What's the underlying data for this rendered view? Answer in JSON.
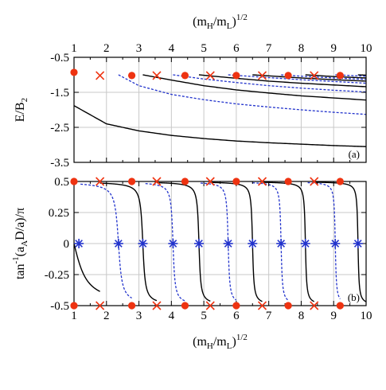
{
  "chart_data": [
    {
      "type": "line",
      "panel_label": "(a)",
      "top_xlabel": "(m_H/m_L)^{1/2}",
      "ylabel": "E/B_2",
      "xlim": [
        1,
        10
      ],
      "ylim": [
        -3.5,
        -0.5
      ],
      "xticks": [
        1,
        2,
        3,
        4,
        5,
        6,
        7,
        8,
        9,
        10
      ],
      "yticks": [
        -0.5,
        -1.5,
        -2.5,
        -3.5
      ],
      "ytick_labels": [
        "-0.5",
        "-1.5",
        "-2.5",
        "-3.5"
      ],
      "grid": true,
      "series": [
        {
          "style": "solid",
          "color": "#000000",
          "x": [
            1,
            2,
            3,
            4,
            5,
            6,
            7,
            8,
            9,
            10
          ],
          "values": [
            -1.88,
            -2.4,
            -2.6,
            -2.73,
            -2.82,
            -2.89,
            -2.94,
            -2.98,
            -3.02,
            -3.05
          ]
        },
        {
          "style": "dashed",
          "color": "#2233cc",
          "x": [
            2.37,
            3,
            4,
            5,
            6,
            7,
            8,
            9,
            10
          ],
          "values": [
            -1.0,
            -1.31,
            -1.56,
            -1.71,
            -1.83,
            -1.92,
            -2.0,
            -2.07,
            -2.13
          ]
        },
        {
          "style": "solid",
          "color": "#000000",
          "x": [
            3.12,
            4,
            5,
            6,
            7,
            8,
            9,
            10
          ],
          "values": [
            -1.0,
            -1.15,
            -1.31,
            -1.43,
            -1.52,
            -1.6,
            -1.66,
            -1.72
          ]
        },
        {
          "style": "dashed",
          "color": "#2233cc",
          "x": [
            4.05,
            5,
            6,
            7,
            8,
            9,
            10
          ],
          "values": [
            -1.0,
            -1.12,
            -1.22,
            -1.31,
            -1.38,
            -1.44,
            -1.49
          ]
        },
        {
          "style": "solid",
          "color": "#000000",
          "x": [
            4.85,
            6,
            7,
            8,
            9,
            10
          ],
          "values": [
            -1.0,
            -1.1,
            -1.18,
            -1.24,
            -1.29,
            -1.34
          ]
        },
        {
          "style": "dashed",
          "color": "#2233cc",
          "x": [
            5.75,
            7,
            8,
            9,
            10
          ],
          "values": [
            -1.0,
            -1.08,
            -1.14,
            -1.19,
            -1.24
          ]
        },
        {
          "style": "solid",
          "color": "#000000",
          "x": [
            6.5,
            7,
            8,
            9,
            10
          ],
          "values": [
            -1.0,
            -1.03,
            -1.09,
            -1.14,
            -1.18
          ]
        },
        {
          "style": "dashed",
          "color": "#2233cc",
          "x": [
            7.38,
            8,
            9,
            10
          ],
          "values": [
            -1.0,
            -1.04,
            -1.09,
            -1.13
          ]
        },
        {
          "style": "solid",
          "color": "#000000",
          "x": [
            8.13,
            9,
            10
          ],
          "values": [
            -1.0,
            -1.05,
            -1.09
          ]
        },
        {
          "style": "dashed",
          "color": "#2233cc",
          "x": [
            9.05,
            10
          ],
          "values": [
            -1.0,
            -1.04
          ]
        },
        {
          "style": "solid",
          "color": "#000000",
          "x": [
            9.75,
            10
          ],
          "values": [
            -1.0,
            -1.01
          ]
        }
      ],
      "markers": [
        {
          "symbol": "filled-circle",
          "color": "#ee3311",
          "x": [
            1.0,
            2.78,
            4.42,
            6.0,
            7.6,
            9.2
          ],
          "values": [
            -0.93,
            -1.02,
            -1.02,
            -1.02,
            -1.02,
            -1.02
          ]
        },
        {
          "symbol": "cross",
          "color": "#ee3311",
          "x": [
            1.8,
            3.55,
            5.2,
            6.8,
            8.4
          ],
          "values": [
            -1.02,
            -1.02,
            -1.02,
            -1.02,
            -1.02
          ]
        }
      ]
    },
    {
      "type": "line",
      "panel_label": "(b)",
      "xlabel": "(m_H/m_L)^{1/2}",
      "ylabel": "tan^{-1}(a_AD/a)/π",
      "xlim": [
        1,
        10
      ],
      "ylim": [
        -0.5,
        0.5
      ],
      "xticks": [
        1,
        2,
        3,
        4,
        5,
        6,
        7,
        8,
        9,
        10
      ],
      "yticks": [
        0.5,
        0.25,
        0,
        -0.25,
        -0.5
      ],
      "ytick_labels": [
        "0.5",
        "0.25",
        "0",
        "-0.25",
        "-0.5"
      ],
      "grid": true,
      "series": [
        {
          "style": "solid",
          "color": "#000000",
          "kind": "arctan",
          "x0": 1.0,
          "branch": "lower",
          "width": 0.3,
          "x_end": 1.8
        },
        {
          "style": "dashed",
          "color": "#2233cc",
          "kind": "arctan",
          "x0": 2.37,
          "width": 0.08,
          "x_start": 1.2,
          "x_end": 2.78
        },
        {
          "style": "solid",
          "color": "#000000",
          "kind": "arctan",
          "x0": 3.12,
          "width": 0.055,
          "x_start": 1.8,
          "x_end": 3.55
        },
        {
          "style": "dashed",
          "color": "#2233cc",
          "kind": "arctan",
          "x0": 4.05,
          "width": 0.045,
          "x_start": 3.2,
          "x_end": 4.42
        },
        {
          "style": "solid",
          "color": "#000000",
          "kind": "arctan",
          "x0": 4.85,
          "width": 0.04,
          "x_start": 3.55,
          "x_end": 5.2
        },
        {
          "style": "dashed",
          "color": "#2233cc",
          "kind": "arctan",
          "x0": 5.75,
          "width": 0.035,
          "x_start": 4.9,
          "x_end": 6.0
        },
        {
          "style": "solid",
          "color": "#000000",
          "kind": "arctan",
          "x0": 6.5,
          "width": 0.032,
          "x_start": 5.2,
          "x_end": 6.8
        },
        {
          "style": "dashed",
          "color": "#2233cc",
          "kind": "arctan",
          "x0": 7.38,
          "width": 0.03,
          "x_start": 6.5,
          "x_end": 7.6
        },
        {
          "style": "solid",
          "color": "#000000",
          "kind": "arctan",
          "x0": 8.13,
          "width": 0.028,
          "x_start": 6.8,
          "x_end": 8.4
        },
        {
          "style": "dashed",
          "color": "#2233cc",
          "kind": "arctan",
          "x0": 9.05,
          "width": 0.026,
          "x_start": 8.2,
          "x_end": 9.2
        },
        {
          "style": "solid",
          "color": "#000000",
          "kind": "arctan",
          "x0": 9.75,
          "width": 0.025,
          "x_start": 8.4,
          "x_end": 10.0
        }
      ],
      "markers": [
        {
          "symbol": "filled-circle",
          "color": "#ee3311",
          "x": [
            1.0,
            2.78,
            4.42,
            6.0,
            7.6,
            9.2
          ],
          "values": [
            0.5,
            0.5,
            0.5,
            0.5,
            0.5,
            0.5
          ]
        },
        {
          "symbol": "filled-circle",
          "color": "#ee3311",
          "x": [
            1.0,
            2.78,
            4.42,
            6.0,
            7.6,
            9.2
          ],
          "values": [
            -0.5,
            -0.5,
            -0.5,
            -0.5,
            -0.5,
            -0.5
          ]
        },
        {
          "symbol": "cross",
          "color": "#ee3311",
          "x": [
            1.8,
            3.55,
            5.2,
            6.8,
            8.4
          ],
          "values": [
            0.5,
            0.5,
            0.5,
            0.5,
            0.5
          ]
        },
        {
          "symbol": "cross",
          "color": "#ee3311",
          "x": [
            1.8,
            3.55,
            5.2,
            6.8,
            8.4
          ],
          "values": [
            -0.5,
            -0.5,
            -0.5,
            -0.5,
            -0.5
          ]
        },
        {
          "symbol": "asterisk",
          "color": "#2233cc",
          "x": [
            1.15,
            2.37,
            3.12,
            4.05,
            4.85,
            5.75,
            6.5,
            7.38,
            8.13,
            9.05,
            9.75
          ],
          "values": [
            0,
            0,
            0,
            0,
            0,
            0,
            0,
            0,
            0,
            0,
            0
          ]
        }
      ]
    }
  ]
}
